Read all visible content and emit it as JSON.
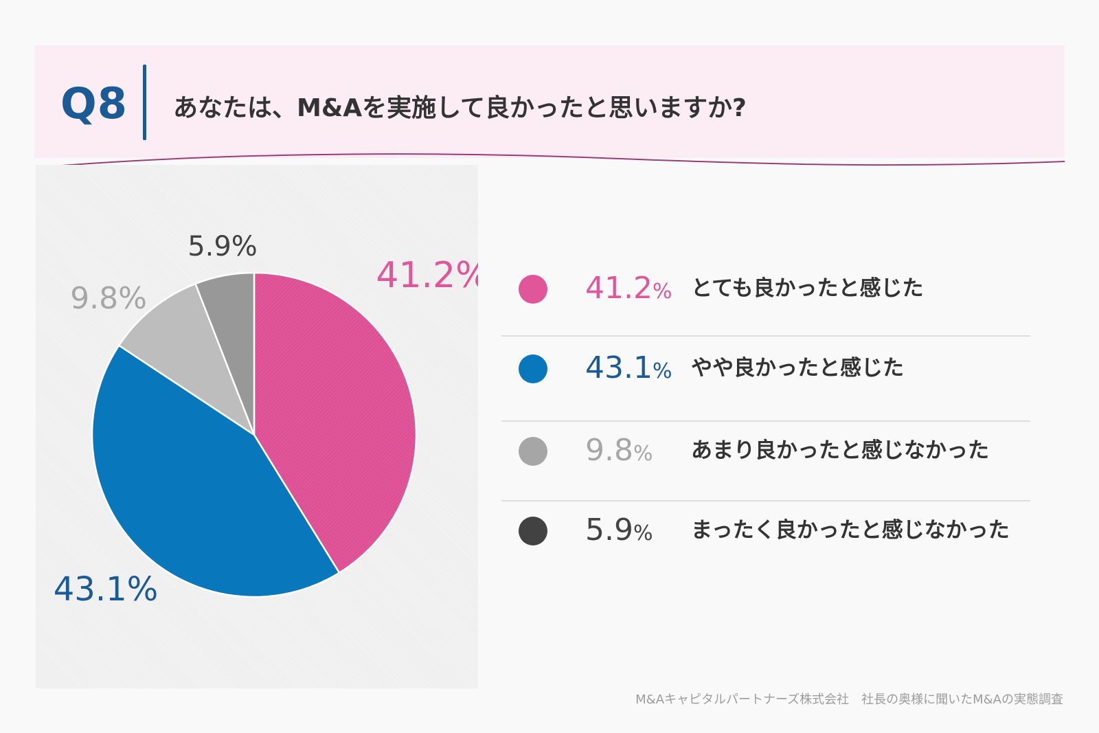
{
  "header": {
    "question_number": "Q8",
    "question_text": "あなたは、M&Aを実施して良かったと思いますか?"
  },
  "colors": {
    "pink": "#e15599",
    "blue": "#0877bb",
    "light_gray": "#bdbdbd",
    "dark_gray": "#989898",
    "legend_dark": "#424242",
    "legend_light": "#a6a6a6",
    "title_blue": "#1a5a96",
    "header_bg": "#fcecf3",
    "wave_line": "#9b3b7a"
  },
  "chart_data": {
    "type": "pie",
    "title": "あなたは、M&Aを実施して良かったと思いますか?",
    "start_angle_deg": 0,
    "direction": "clockwise",
    "slices": [
      {
        "label": "とても良かったと感じた",
        "value": 41.2,
        "display": "41.2%",
        "color": "#e15599",
        "label_color": "#e15599"
      },
      {
        "label": "やや良かったと感じた",
        "value": 43.1,
        "display": "43.1%",
        "color": "#0877bb",
        "label_color": "#1a5a96"
      },
      {
        "label": "あまり良かったと感じなかった",
        "value": 9.8,
        "display": "9.8%",
        "color": "#bdbdbd",
        "label_color": "#a6a6a6"
      },
      {
        "label": "まったく良かったと感じなかった",
        "value": 5.9,
        "display": "5.9%",
        "color": "#989898",
        "label_color": "#424242"
      }
    ]
  },
  "legend": {
    "items": [
      {
        "number": "41.2",
        "unit": "%",
        "label": "とても良かったと感じた",
        "dot_color": "#e15599",
        "text_color": "#e15599"
      },
      {
        "number": "43.1",
        "unit": "%",
        "label": "やや良かったと感じた",
        "dot_color": "#0877bb",
        "text_color": "#1a5a96"
      },
      {
        "number": "9.8",
        "unit": "%",
        "label": "あまり良かったと感じなかった",
        "dot_color": "#a6a6a6",
        "text_color": "#a6a6a6"
      },
      {
        "number": "5.9",
        "unit": "%",
        "label": "まったく良かったと感じなかった",
        "dot_color": "#424242",
        "text_color": "#424242"
      }
    ]
  },
  "footer": {
    "source": "M&Aキャピタルパートナーズ株式会社　社長の奥様に聞いたM&Aの実態調査"
  }
}
